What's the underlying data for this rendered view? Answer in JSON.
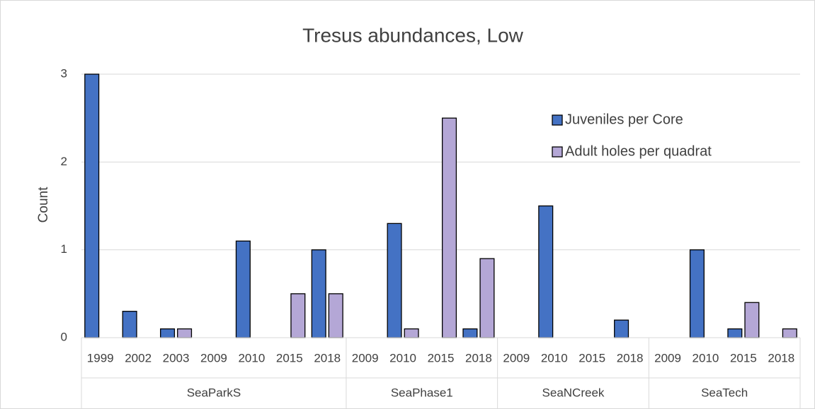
{
  "chart_data": {
    "type": "bar",
    "title": "Tresus abundances, Low",
    "y_label": "Count",
    "groups": [
      {
        "name": "SeaParkS",
        "categories": [
          "1999",
          "2002",
          "2003",
          "2009",
          "2010",
          "2015",
          "2018"
        ]
      },
      {
        "name": "SeaPhase1",
        "categories": [
          "2009",
          "2010",
          "2015",
          "2018"
        ]
      },
      {
        "name": "SeaNCreek",
        "categories": [
          "2009",
          "2010",
          "2015",
          "2018"
        ]
      },
      {
        "name": "SeaTech",
        "categories": [
          "2009",
          "2010",
          "2015",
          "2018"
        ]
      }
    ],
    "series": [
      {
        "name": "Juveniles per Core",
        "color": "#4472c4",
        "values": [
          3,
          0.3,
          0.1,
          null,
          1.1,
          null,
          1.0,
          null,
          1.3,
          null,
          0.1,
          null,
          1.5,
          null,
          0.2,
          null,
          1.0,
          0.1,
          null
        ]
      },
      {
        "name": "Adult holes per quadrat",
        "color": "#b4a7d6",
        "values": [
          null,
          null,
          0.1,
          null,
          null,
          0.5,
          0.5,
          null,
          0.1,
          2.5,
          0.9,
          null,
          null,
          null,
          null,
          null,
          null,
          0.4,
          0.1
        ]
      }
    ],
    "ylim": [
      0,
      3
    ],
    "yticks": [
      0,
      1,
      2,
      3
    ],
    "grid": true,
    "legend": "upper right"
  }
}
